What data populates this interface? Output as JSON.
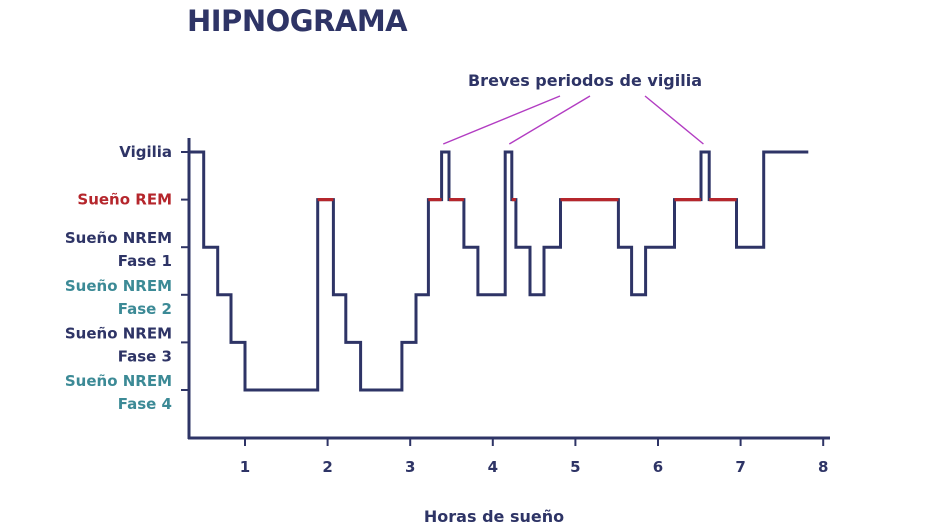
{
  "chart_data": {
    "type": "line",
    "title": "HIPNOGRAMA",
    "xlabel": "Horas de sueño",
    "ylabel": "",
    "xlim": [
      0.33,
      8
    ],
    "x_ticks": [
      "1",
      "2",
      "3",
      "4",
      "5",
      "6",
      "7",
      "8"
    ],
    "y_levels": [
      {
        "lines": [
          "Vigilia"
        ],
        "color": "#2e3466"
      },
      {
        "lines": [
          "Sueño REM"
        ],
        "color": "#b5262c"
      },
      {
        "lines": [
          "Sueño NREM",
          "Fase 1"
        ],
        "color": "#2e3466"
      },
      {
        "lines": [
          "Sueño NREM",
          "Fase 2"
        ],
        "color": "#3c8a96"
      },
      {
        "lines": [
          "Sueño NREM",
          "Fase 3"
        ],
        "color": "#2e3466"
      },
      {
        "lines": [
          "Sueño NREM",
          "Fase 4"
        ],
        "color": "#3c8a96"
      }
    ],
    "step_points": [
      [
        0.33,
        0
      ],
      [
        0.5,
        0
      ],
      [
        0.5,
        2
      ],
      [
        0.67,
        2
      ],
      [
        0.67,
        3
      ],
      [
        0.83,
        3
      ],
      [
        0.83,
        4
      ],
      [
        1.0,
        4
      ],
      [
        1.0,
        5
      ],
      [
        1.88,
        5
      ],
      [
        1.88,
        1
      ],
      [
        2.07,
        1
      ],
      [
        2.07,
        3
      ],
      [
        2.22,
        3
      ],
      [
        2.22,
        4
      ],
      [
        2.4,
        4
      ],
      [
        2.4,
        5
      ],
      [
        2.9,
        5
      ],
      [
        2.9,
        4
      ],
      [
        3.07,
        4
      ],
      [
        3.07,
        3
      ],
      [
        3.22,
        3
      ],
      [
        3.22,
        1
      ],
      [
        3.38,
        1
      ],
      [
        3.38,
        0
      ],
      [
        3.47,
        0
      ],
      [
        3.47,
        1
      ],
      [
        3.65,
        1
      ],
      [
        3.65,
        2
      ],
      [
        3.82,
        2
      ],
      [
        3.82,
        3
      ],
      [
        4.15,
        3
      ],
      [
        4.15,
        0
      ],
      [
        4.23,
        0
      ],
      [
        4.23,
        1
      ],
      [
        4.28,
        1
      ],
      [
        4.28,
        2
      ],
      [
        4.45,
        2
      ],
      [
        4.45,
        3
      ],
      [
        4.62,
        3
      ],
      [
        4.62,
        2
      ],
      [
        4.82,
        2
      ],
      [
        4.82,
        1
      ],
      [
        5.52,
        1
      ],
      [
        5.52,
        2
      ],
      [
        5.68,
        2
      ],
      [
        5.68,
        3
      ],
      [
        5.85,
        3
      ],
      [
        5.85,
        2
      ],
      [
        6.2,
        2
      ],
      [
        6.2,
        1
      ],
      [
        6.52,
        1
      ],
      [
        6.52,
        0
      ],
      [
        6.62,
        0
      ],
      [
        6.62,
        1
      ],
      [
        6.95,
        1
      ],
      [
        6.95,
        2
      ],
      [
        7.28,
        2
      ],
      [
        7.28,
        0
      ],
      [
        7.82,
        0
      ]
    ],
    "series_color": "#2e3466",
    "rem_color": "#b5262c",
    "annotation": {
      "text": "Breves periodos de vigilia",
      "color": "#b23cc2",
      "targets": [
        3.4,
        4.2,
        6.55
      ]
    },
    "grid": false,
    "legend": "none"
  }
}
